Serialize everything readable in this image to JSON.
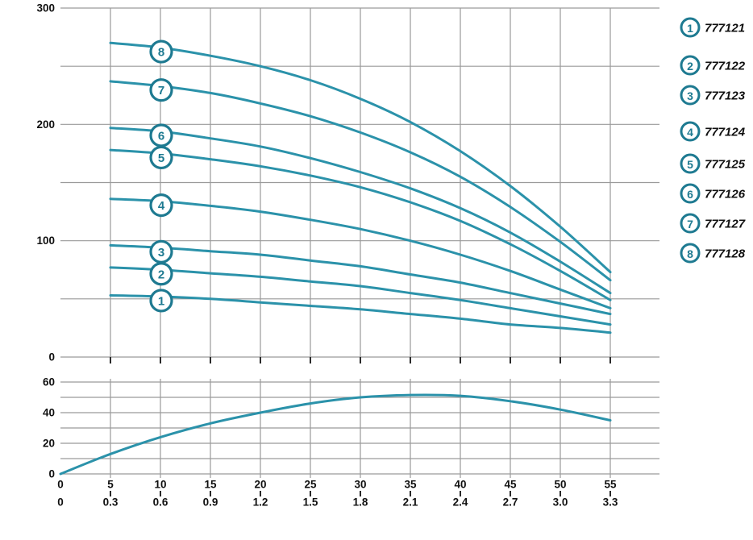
{
  "colors": {
    "background": "#ffffff",
    "curve": "#2b92aa",
    "ring": "#1e7a91",
    "grid": "#9a9a9a",
    "tick": "#2a2a2a",
    "text": "#101010"
  },
  "chart_data": [
    {
      "id": "head-curves",
      "type": "line",
      "title": "",
      "xlabel": "",
      "ylabel": "",
      "ylim": [
        0,
        300
      ],
      "y_grid_step": 50,
      "grid": true,
      "legend_position": "right",
      "y_tick_labels": [
        "0",
        "100",
        "200",
        "300"
      ],
      "x_tick_step": 5,
      "series": [
        {
          "label": "1",
          "model": "777121",
          "points": [
            [
              5,
              53
            ],
            [
              10,
              52
            ],
            [
              15,
              50
            ],
            [
              20,
              47
            ],
            [
              25,
              44
            ],
            [
              30,
              41
            ],
            [
              35,
              37
            ],
            [
              40,
              33
            ],
            [
              45,
              28
            ],
            [
              50,
              25
            ],
            [
              55,
              21
            ]
          ]
        },
        {
          "label": "2",
          "model": "777122",
          "points": [
            [
              5,
              77
            ],
            [
              10,
              75
            ],
            [
              15,
              72
            ],
            [
              20,
              69
            ],
            [
              25,
              65
            ],
            [
              30,
              61
            ],
            [
              35,
              55
            ],
            [
              40,
              49
            ],
            [
              45,
              42
            ],
            [
              50,
              35
            ],
            [
              55,
              28
            ]
          ]
        },
        {
          "label": "3",
          "model": "777123",
          "points": [
            [
              5,
              96
            ],
            [
              10,
              94
            ],
            [
              15,
              91
            ],
            [
              20,
              88
            ],
            [
              25,
              83
            ],
            [
              30,
              78
            ],
            [
              35,
              71
            ],
            [
              40,
              64
            ],
            [
              45,
              55
            ],
            [
              50,
              46
            ],
            [
              55,
              37
            ]
          ]
        },
        {
          "label": "4",
          "model": "777124",
          "points": [
            [
              5,
              136
            ],
            [
              10,
              134
            ],
            [
              15,
              130
            ],
            [
              20,
              125
            ],
            [
              25,
              118
            ],
            [
              30,
              110
            ],
            [
              35,
              100
            ],
            [
              40,
              88
            ],
            [
              45,
              74
            ],
            [
              50,
              58
            ],
            [
              55,
              42
            ]
          ]
        },
        {
          "label": "5",
          "model": "777125",
          "points": [
            [
              5,
              178
            ],
            [
              10,
              175
            ],
            [
              15,
              170
            ],
            [
              20,
              164
            ],
            [
              25,
              156
            ],
            [
              30,
              146
            ],
            [
              35,
              133
            ],
            [
              40,
              117
            ],
            [
              45,
              97
            ],
            [
              50,
              74
            ],
            [
              55,
              49
            ]
          ]
        },
        {
          "label": "6",
          "model": "777126",
          "points": [
            [
              5,
              197
            ],
            [
              10,
              194
            ],
            [
              15,
              188
            ],
            [
              20,
              181
            ],
            [
              25,
              171
            ],
            [
              30,
              159
            ],
            [
              35,
              145
            ],
            [
              40,
              128
            ],
            [
              45,
              107
            ],
            [
              50,
              82
            ],
            [
              55,
              55
            ]
          ]
        },
        {
          "label": "7",
          "model": "777127",
          "points": [
            [
              5,
              237
            ],
            [
              10,
              233
            ],
            [
              15,
              227
            ],
            [
              20,
              218
            ],
            [
              25,
              207
            ],
            [
              30,
              193
            ],
            [
              35,
              176
            ],
            [
              40,
              155
            ],
            [
              45,
              129
            ],
            [
              50,
              99
            ],
            [
              55,
              66
            ]
          ]
        },
        {
          "label": "8",
          "model": "777128",
          "points": [
            [
              5,
              270
            ],
            [
              10,
              266
            ],
            [
              15,
              259
            ],
            [
              20,
              250
            ],
            [
              25,
              238
            ],
            [
              30,
              222
            ],
            [
              35,
              202
            ],
            [
              40,
              177
            ],
            [
              45,
              147
            ],
            [
              50,
              112
            ],
            [
              55,
              73
            ]
          ]
        }
      ]
    },
    {
      "id": "efficiency-curve",
      "type": "line",
      "title": "",
      "xlabel": "",
      "ylabel": "",
      "ylim": [
        0,
        60
      ],
      "y_grid_step": 10,
      "grid": true,
      "y_tick_labels": [
        "0",
        "20",
        "40",
        "60"
      ],
      "points": [
        [
          0,
          0
        ],
        [
          5,
          13
        ],
        [
          10,
          24
        ],
        [
          15,
          33
        ],
        [
          20,
          40
        ],
        [
          25,
          46
        ],
        [
          30,
          50
        ],
        [
          35,
          51.5
        ],
        [
          40,
          51
        ],
        [
          45,
          47.5
        ],
        [
          50,
          42
        ],
        [
          55,
          35
        ]
      ]
    }
  ],
  "x_axis": {
    "row1": [
      "0",
      "5",
      "10",
      "15",
      "20",
      "25",
      "30",
      "35",
      "40",
      "45",
      "50",
      "55"
    ],
    "row2": [
      "0",
      "0.3",
      "0.6",
      "0.9",
      "1.2",
      "1.5",
      "1.8",
      "2.1",
      "2.4",
      "2.7",
      "3.0",
      "3.3"
    ]
  },
  "legend": {
    "items": [
      {
        "num": "1",
        "model": "777121"
      },
      {
        "num": "2",
        "model": "777122"
      },
      {
        "num": "3",
        "model": "777123"
      },
      {
        "num": "4",
        "model": "777124"
      },
      {
        "num": "5",
        "model": "777125"
      },
      {
        "num": "6",
        "model": "777126"
      },
      {
        "num": "7",
        "model": "777127"
      },
      {
        "num": "8",
        "model": "777128"
      }
    ]
  }
}
